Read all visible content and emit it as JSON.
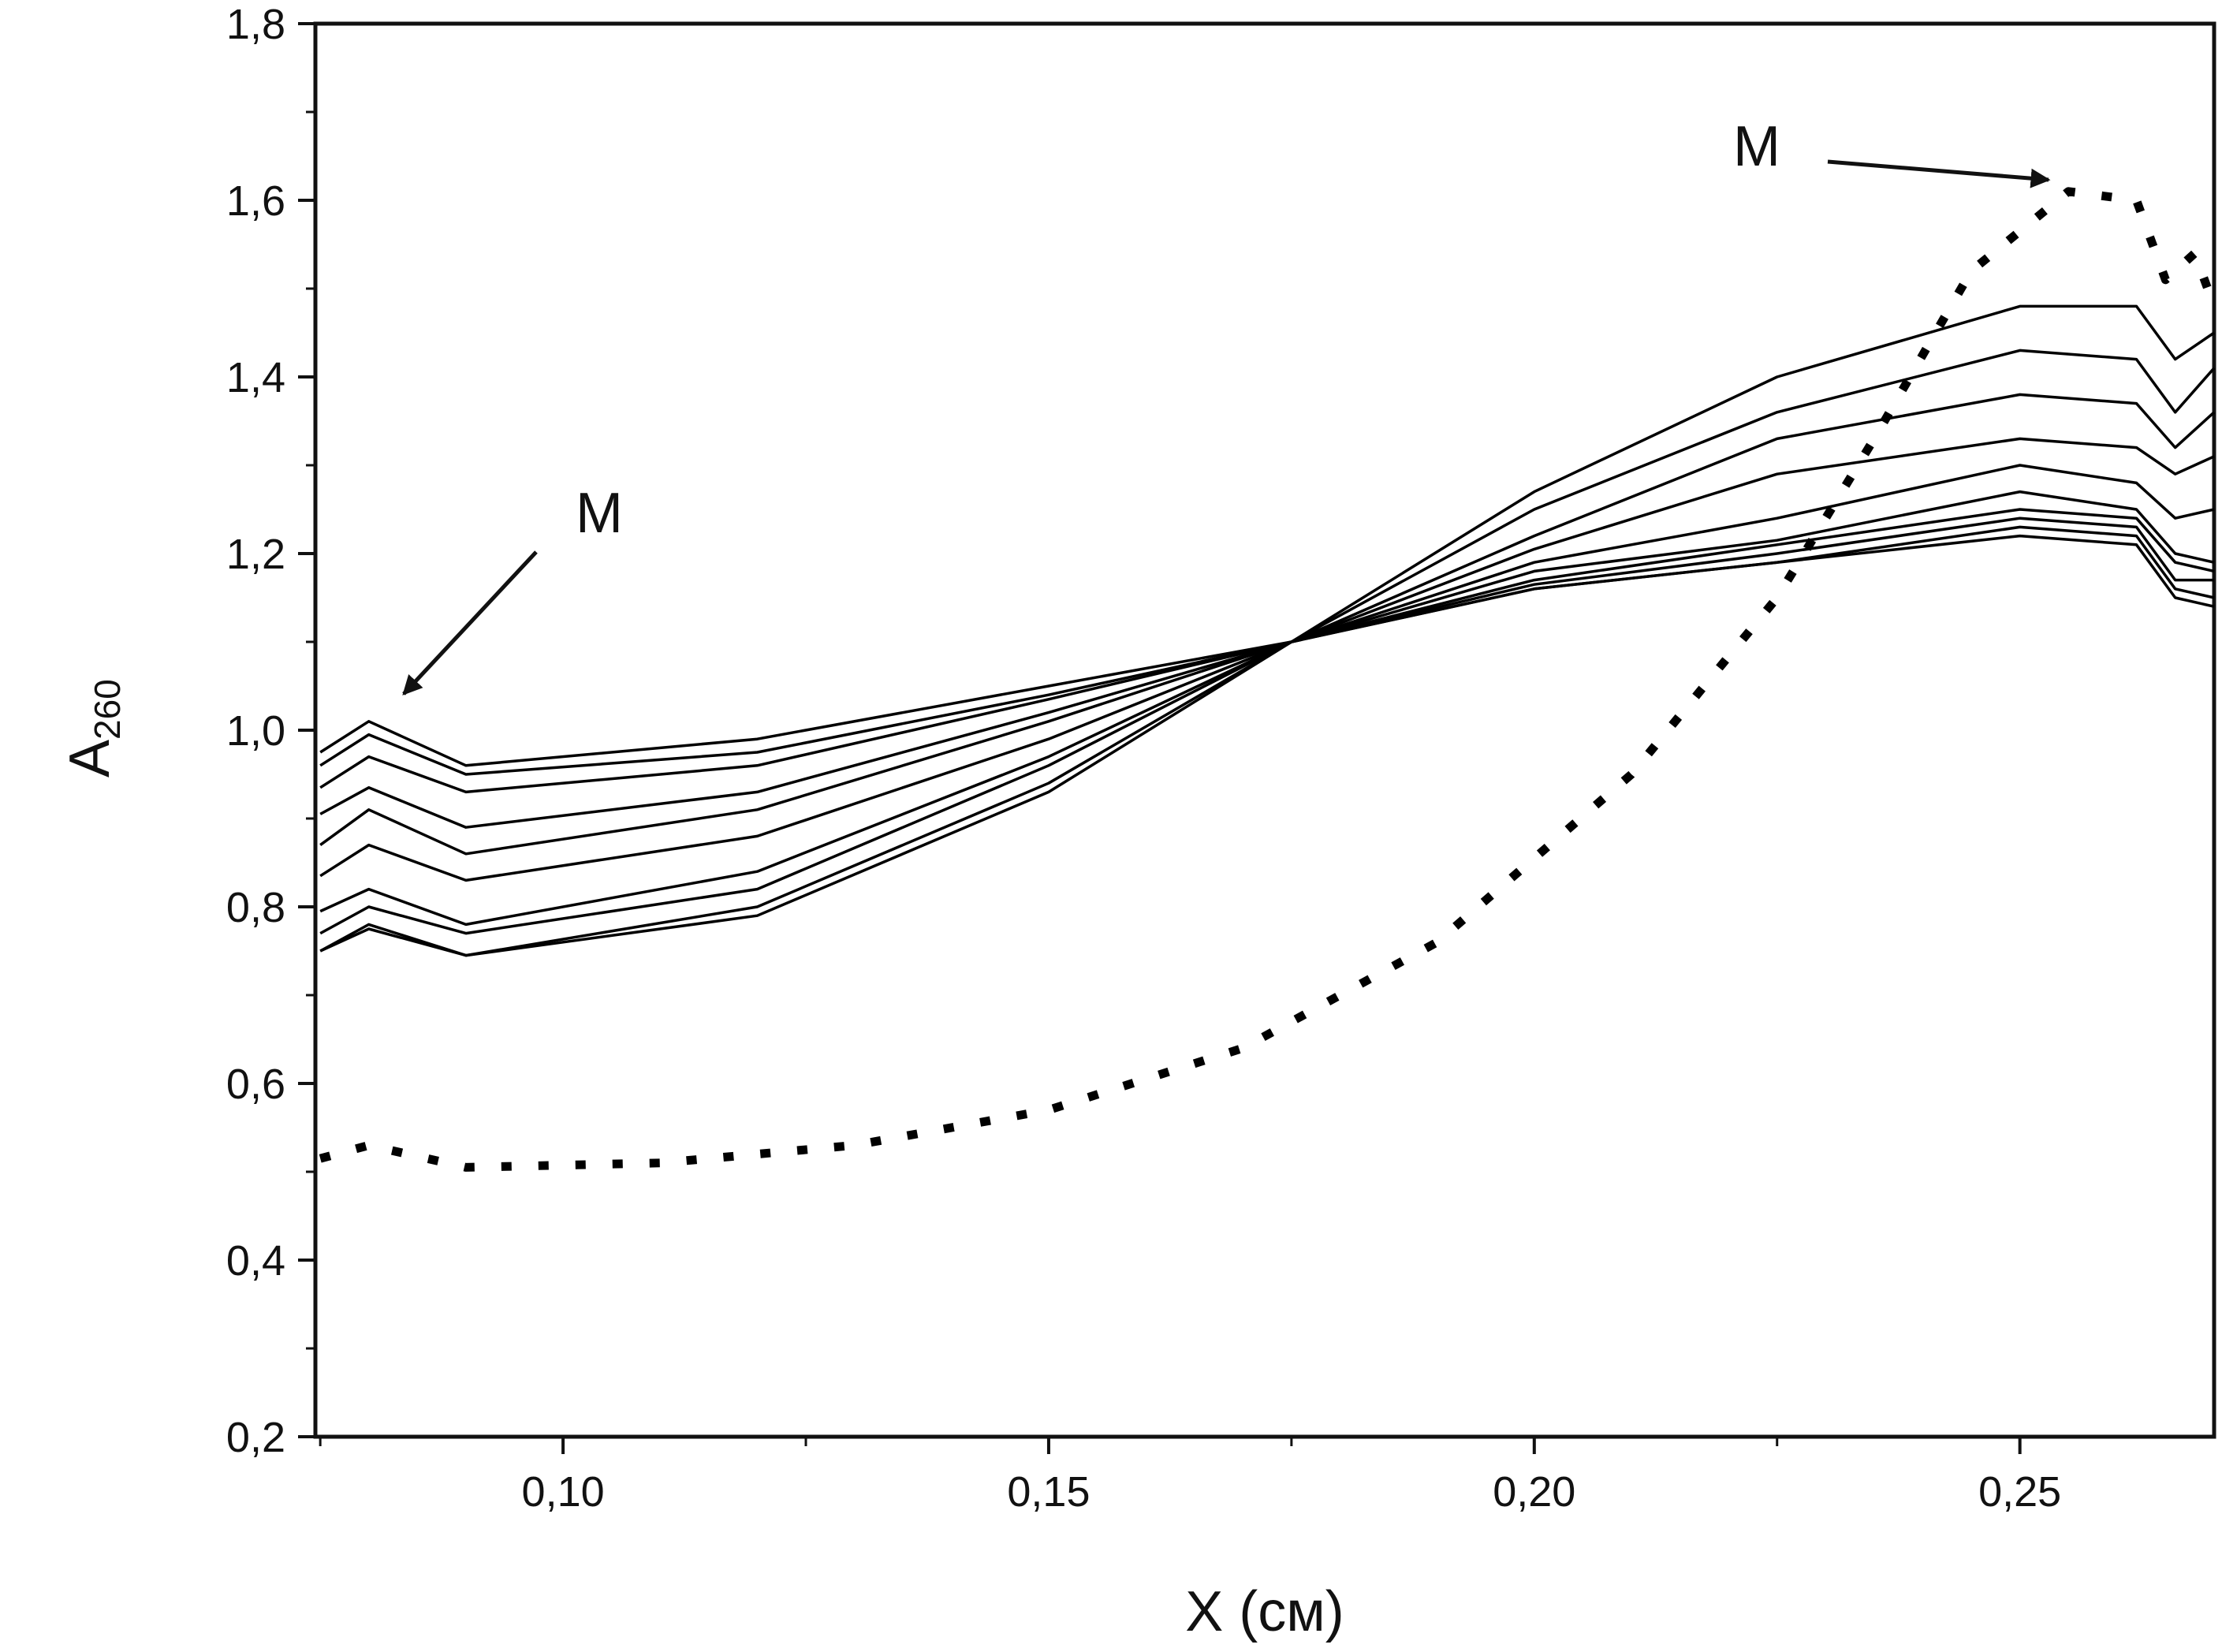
{
  "chart_data": {
    "type": "line",
    "title": "",
    "xlabel": "X (см)",
    "ylabel_main": "A",
    "ylabel_sub": "260",
    "xlim": [
      0.0745,
      0.27
    ],
    "ylim": [
      0.2,
      1.8
    ],
    "x_ticks": [
      0.1,
      0.15,
      0.2,
      0.25
    ],
    "x_tick_labels": [
      "0,10",
      "0,15",
      "0,20",
      "0,25"
    ],
    "y_ticks": [
      0.2,
      0.4,
      0.6,
      0.8,
      1.0,
      1.2,
      1.4,
      1.6,
      1.8
    ],
    "y_tick_labels": [
      "0,2",
      "0,4",
      "0,6",
      "0,8",
      "1,0",
      "1,2",
      "1,4",
      "1,6",
      "1,8"
    ],
    "grid": false,
    "legend": "none",
    "line_color": "#000000",
    "series": [
      {
        "style": "solid",
        "x": [
          0.075,
          0.08,
          0.09,
          0.12,
          0.15,
          0.175,
          0.2,
          0.225,
          0.25,
          0.262,
          0.266,
          0.27
        ],
        "y": [
          0.975,
          1.01,
          0.96,
          0.99,
          1.05,
          1.1,
          1.16,
          1.19,
          1.22,
          1.21,
          1.15,
          1.14
        ]
      },
      {
        "style": "solid",
        "x": [
          0.075,
          0.08,
          0.09,
          0.12,
          0.15,
          0.175,
          0.2,
          0.225,
          0.25,
          0.262,
          0.266,
          0.27
        ],
        "y": [
          0.96,
          0.995,
          0.95,
          0.975,
          1.04,
          1.1,
          1.16,
          1.19,
          1.23,
          1.22,
          1.16,
          1.15
        ]
      },
      {
        "style": "solid",
        "x": [
          0.075,
          0.08,
          0.09,
          0.12,
          0.15,
          0.175,
          0.2,
          0.225,
          0.25,
          0.262,
          0.266,
          0.27
        ],
        "y": [
          0.935,
          0.97,
          0.93,
          0.96,
          1.035,
          1.1,
          1.165,
          1.2,
          1.24,
          1.23,
          1.17,
          1.17
        ]
      },
      {
        "style": "solid",
        "x": [
          0.075,
          0.08,
          0.09,
          0.12,
          0.15,
          0.175,
          0.2,
          0.225,
          0.25,
          0.262,
          0.266,
          0.27
        ],
        "y": [
          0.905,
          0.935,
          0.89,
          0.93,
          1.02,
          1.1,
          1.17,
          1.21,
          1.25,
          1.24,
          1.19,
          1.18
        ]
      },
      {
        "style": "solid",
        "x": [
          0.075,
          0.08,
          0.09,
          0.12,
          0.15,
          0.175,
          0.2,
          0.225,
          0.25,
          0.262,
          0.266,
          0.27
        ],
        "y": [
          0.87,
          0.91,
          0.86,
          0.91,
          1.01,
          1.1,
          1.18,
          1.215,
          1.27,
          1.25,
          1.2,
          1.19
        ]
      },
      {
        "style": "solid",
        "x": [
          0.075,
          0.08,
          0.09,
          0.12,
          0.15,
          0.175,
          0.2,
          0.225,
          0.25,
          0.262,
          0.266,
          0.27
        ],
        "y": [
          0.835,
          0.87,
          0.83,
          0.88,
          0.99,
          1.1,
          1.19,
          1.24,
          1.3,
          1.28,
          1.24,
          1.25
        ]
      },
      {
        "style": "solid",
        "x": [
          0.075,
          0.08,
          0.09,
          0.12,
          0.15,
          0.175,
          0.2,
          0.225,
          0.25,
          0.262,
          0.266,
          0.27
        ],
        "y": [
          0.795,
          0.82,
          0.78,
          0.84,
          0.97,
          1.1,
          1.205,
          1.29,
          1.33,
          1.32,
          1.29,
          1.31
        ]
      },
      {
        "style": "solid",
        "x": [
          0.075,
          0.08,
          0.09,
          0.12,
          0.15,
          0.175,
          0.2,
          0.225,
          0.25,
          0.262,
          0.266,
          0.27
        ],
        "y": [
          0.77,
          0.8,
          0.77,
          0.82,
          0.96,
          1.1,
          1.22,
          1.33,
          1.38,
          1.37,
          1.32,
          1.36
        ]
      },
      {
        "style": "solid",
        "x": [
          0.075,
          0.08,
          0.09,
          0.12,
          0.15,
          0.175,
          0.2,
          0.225,
          0.25,
          0.262,
          0.266,
          0.27
        ],
        "y": [
          0.75,
          0.78,
          0.745,
          0.8,
          0.94,
          1.1,
          1.25,
          1.36,
          1.43,
          1.42,
          1.36,
          1.41
        ]
      },
      {
        "style": "solid",
        "x": [
          0.075,
          0.08,
          0.09,
          0.12,
          0.15,
          0.175,
          0.2,
          0.225,
          0.25,
          0.262,
          0.266,
          0.27
        ],
        "y": [
          0.75,
          0.775,
          0.745,
          0.79,
          0.93,
          1.1,
          1.27,
          1.4,
          1.48,
          1.48,
          1.42,
          1.45
        ]
      },
      {
        "style": "dotted",
        "x": [
          0.075,
          0.08,
          0.09,
          0.11,
          0.13,
          0.15,
          0.17,
          0.19,
          0.21,
          0.225,
          0.235,
          0.245,
          0.255,
          0.262,
          0.265,
          0.268,
          0.27
        ],
        "y": [
          0.515,
          0.53,
          0.505,
          0.51,
          0.53,
          0.57,
          0.64,
          0.76,
          0.95,
          1.15,
          1.33,
          1.52,
          1.61,
          1.6,
          1.51,
          1.54,
          1.48
        ]
      }
    ],
    "annotations": [
      {
        "text": "M",
        "target_x": 0.084,
        "target_y": 1.04
      },
      {
        "text": "M",
        "target_x": 0.2545,
        "target_y": 1.61
      }
    ]
  }
}
